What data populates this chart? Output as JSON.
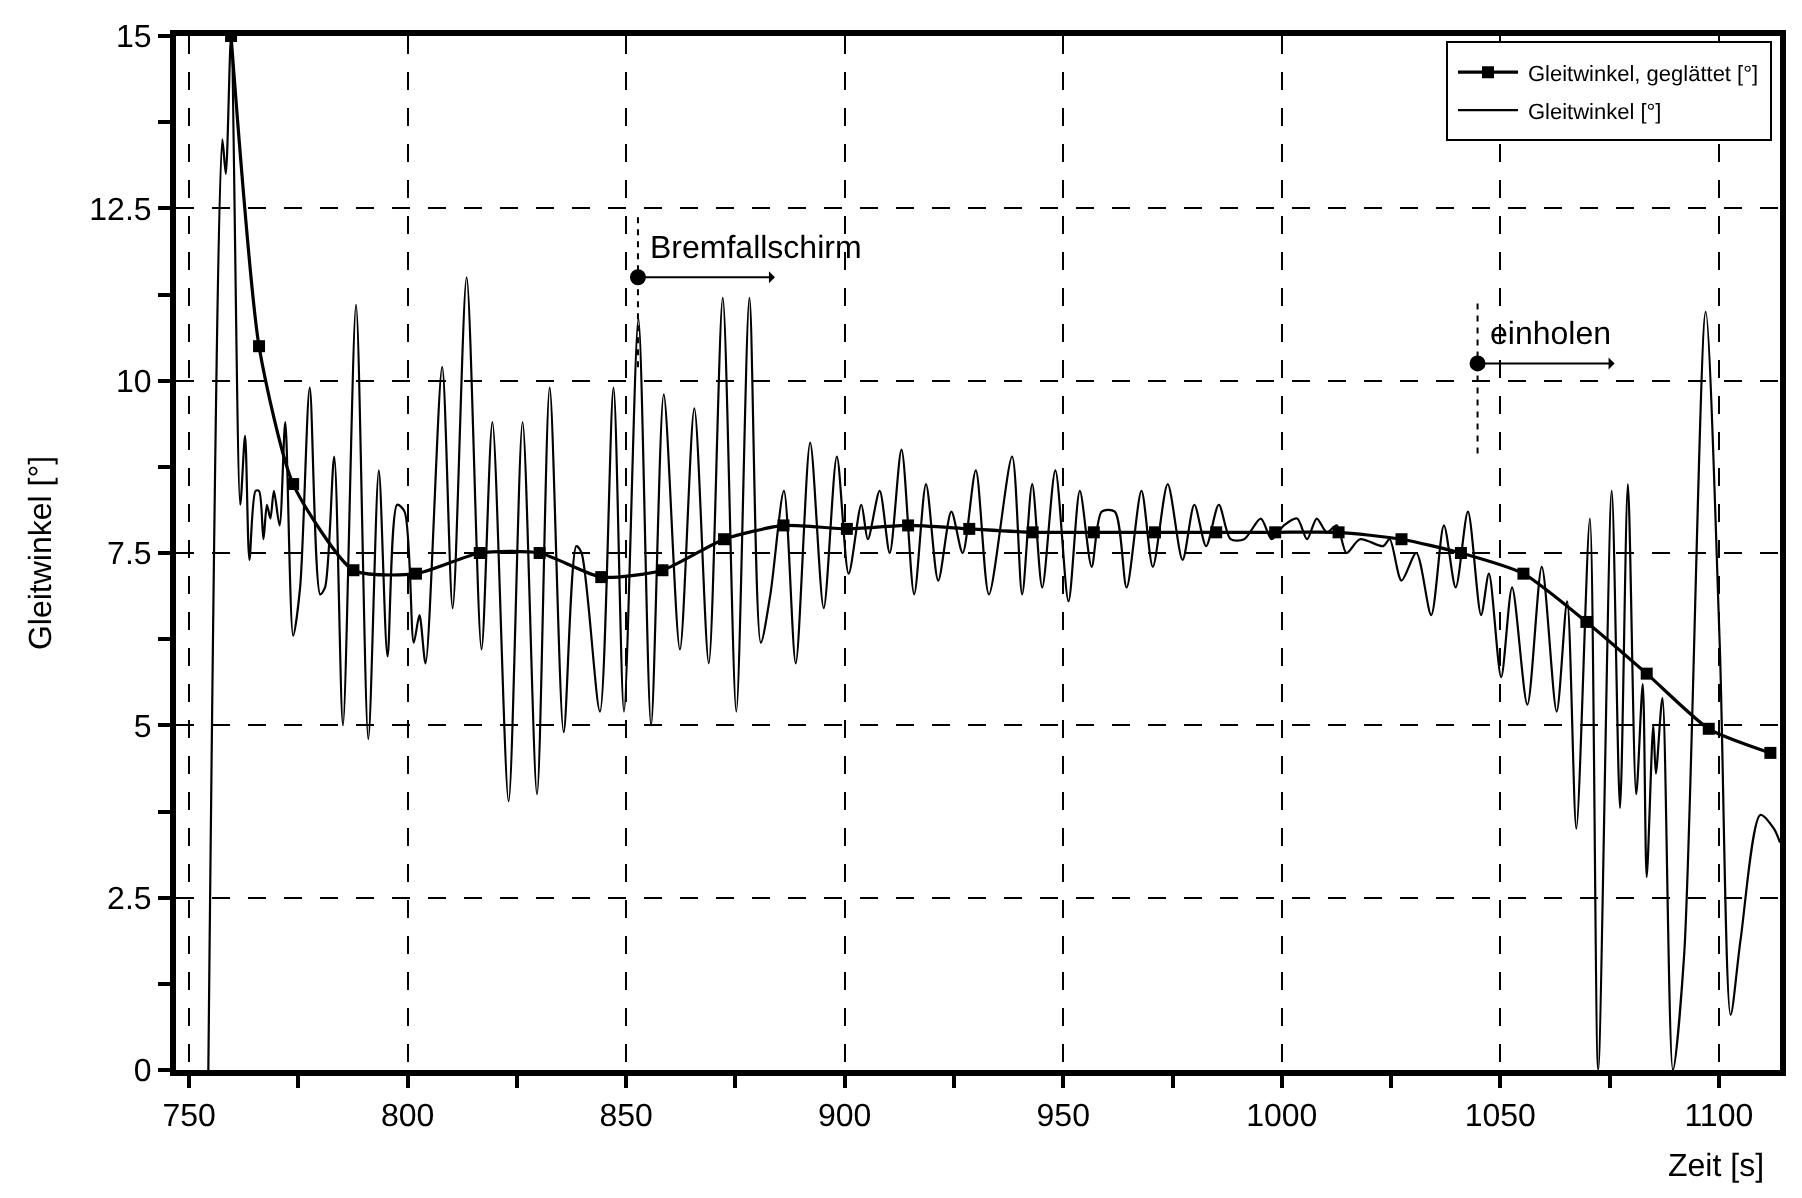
{
  "chart_data": {
    "type": "line",
    "xlabel": "Zeit [s]",
    "ylabel": "Gleitwinkel [°]",
    "xlim": [
      747,
      1114
    ],
    "ylim": [
      0,
      15
    ],
    "xticks": [
      750,
      {
        "value": 775,
        "label": null
      },
      800,
      {
        "value": 825,
        "label": null
      },
      850,
      {
        "value": 875,
        "label": null
      },
      900,
      {
        "value": 925,
        "label": null
      },
      950,
      {
        "value": 975,
        "label": null
      },
      1000,
      {
        "value": 1025,
        "label": null
      },
      1050,
      {
        "value": 1075,
        "label": null
      },
      1100
    ],
    "yticks": [
      0,
      {
        "value": 1.25,
        "label": null
      },
      2.5,
      {
        "value": 3.75,
        "label": null
      },
      5,
      {
        "value": 6.25,
        "label": null
      },
      7.5,
      {
        "value": 8.75,
        "label": null
      },
      10,
      {
        "value": 11.25,
        "label": null
      },
      12.5,
      {
        "value": 13.75,
        "label": null
      },
      15
    ],
    "grid": true,
    "legend": "top right",
    "annotations": [
      {
        "text": "Bremfallschirm",
        "x": 852.7,
        "y": 11.5
      },
      {
        "text": "einholen",
        "x": 1044.8,
        "y": 10.25
      }
    ],
    "series": [
      {
        "name": "Gleitwinkel, geglättet [°]",
        "color": "#000000",
        "marker": "square",
        "x": [
          759.6,
          766,
          773.8,
          787.6,
          801.9,
          816.5,
          830.2,
          844.3,
          858.3,
          872.4,
          886,
          900.5,
          914.5,
          928.5,
          943,
          957,
          971,
          985,
          998.5,
          1013,
          1027.4,
          1041,
          1055.3,
          1069.7,
          1083.5,
          1097.7,
          1111.8
        ],
        "values": [
          15.0,
          10.5,
          8.5,
          7.25,
          7.2,
          7.5,
          7.5,
          7.15,
          7.25,
          7.7,
          7.9,
          7.85,
          7.9,
          7.85,
          7.8,
          7.8,
          7.8,
          7.8,
          7.8,
          7.8,
          7.7,
          7.5,
          7.2,
          6.5,
          5.75,
          4.95,
          4.6
        ]
      },
      {
        "name": "Gleitwinkel [°]",
        "color": "#000000",
        "marker": "none",
        "x": [
          754.4,
          757.6,
          758.4,
          759.6,
          761.7,
          762.8,
          763.8,
          765.2,
          766,
          767,
          767.8,
          768.6,
          769.4,
          770.7,
          772,
          773.8,
          775.4,
          777.6,
          780,
          781.1,
          783.2,
          785.2,
          788.2,
          791,
          793.4,
          795.4,
          797.6,
          799.3,
          801.4,
          802.7,
          804.1,
          807.9,
          810.3,
          813.5,
          816.9,
          819.4,
          823.1,
          826.3,
          829.6,
          832.5,
          835.7,
          838.6,
          839.8,
          844,
          847.1,
          849.5,
          852.8,
          855.7,
          858.6,
          862.3,
          865.6,
          868.9,
          872.1,
          875.2,
          878.2,
          880.8,
          883,
          886.1,
          888.8,
          892.1,
          895.2,
          898.2,
          900.9,
          903.8,
          905.3,
          908,
          910.3,
          913,
          915.9,
          918.6,
          921.4,
          924.4,
          927,
          930,
          933,
          938.3,
          940.6,
          942.9,
          945.2,
          948.2,
          951.2,
          953.8,
          956.5,
          958.8,
          961.8,
          964.5,
          967.9,
          970.5,
          973.9,
          977.3,
          980,
          982.7,
          985.6,
          988.3,
          991.4,
          995.2,
          997.7,
          1000.5,
          1003.5,
          1005.8,
          1008,
          1010.3,
          1012.6,
          1014.8,
          1017.9,
          1023.2,
          1024.7,
          1027.4,
          1030.8,
          1034.2,
          1037.1,
          1039.8,
          1042.6,
          1045.6,
          1047.4,
          1050.2,
          1052.7,
          1056.2,
          1059.5,
          1062.9,
          1065.3,
          1067.4,
          1070.5,
          1072.4,
          1075.5,
          1077.4,
          1079.2,
          1081.1,
          1082.6,
          1083.5,
          1085,
          1085.6,
          1087.1,
          1089.5,
          1092.1,
          1097,
          1100.2,
          1102.7,
          1105,
          1109.5,
          1112.6,
          1114
        ],
        "values": [
          0.0,
          13.5,
          13.0,
          15.0,
          8.2,
          9.2,
          7.4,
          8.4,
          8.4,
          7.7,
          8.2,
          8.0,
          8.4,
          7.9,
          9.4,
          6.3,
          7.0,
          9.9,
          6.9,
          7.0,
          8.9,
          5.0,
          11.1,
          4.8,
          8.7,
          6.0,
          8.2,
          8.1,
          6.2,
          6.6,
          5.9,
          10.2,
          6.7,
          11.5,
          6.1,
          9.4,
          3.9,
          9.4,
          4.0,
          9.9,
          4.9,
          7.6,
          7.5,
          5.2,
          9.9,
          5.2,
          10.9,
          5.0,
          9.8,
          6.1,
          9.6,
          5.9,
          11.2,
          5.2,
          11.2,
          6.2,
          6.9,
          8.4,
          5.9,
          9.1,
          6.7,
          8.9,
          7.2,
          8.2,
          7.7,
          8.4,
          7.5,
          9.0,
          6.9,
          8.5,
          7.1,
          8.1,
          7.5,
          8.7,
          6.9,
          8.9,
          6.9,
          8.5,
          7.0,
          8.7,
          6.8,
          8.4,
          7.3,
          8.1,
          8.1,
          7.0,
          8.4,
          7.3,
          8.5,
          7.4,
          8.2,
          7.6,
          8.2,
          7.7,
          7.7,
          8.0,
          7.7,
          7.9,
          8.0,
          7.7,
          8.0,
          7.8,
          7.9,
          7.5,
          7.7,
          7.6,
          7.7,
          7.1,
          7.5,
          6.6,
          7.9,
          7.0,
          8.1,
          6.6,
          7.2,
          5.7,
          7.0,
          5.3,
          7.3,
          5.2,
          6.8,
          3.5,
          8.0,
          0.0,
          8.4,
          3.8,
          8.5,
          4.0,
          5.6,
          2.8,
          5.0,
          4.3,
          5.4,
          0.0,
          1.7,
          11.0,
          6.2,
          0.8,
          1.9,
          3.7,
          3.5,
          3.3
        ]
      }
    ]
  }
}
